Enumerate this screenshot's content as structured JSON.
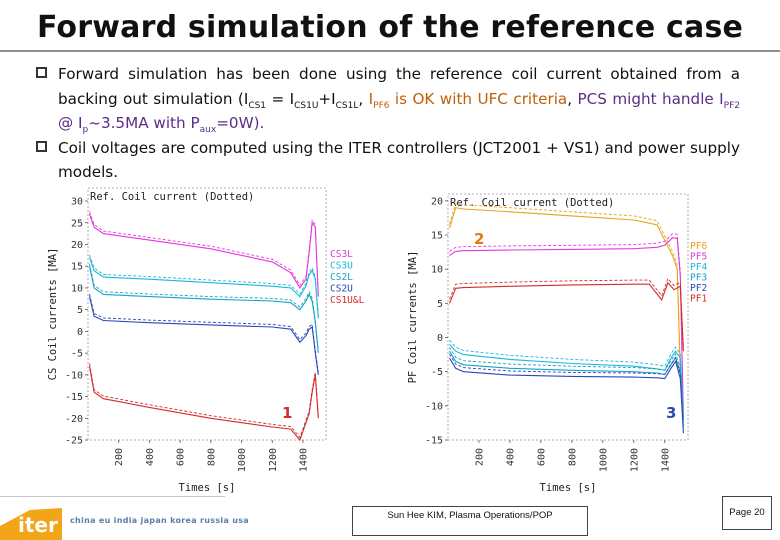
{
  "slide": {
    "title": "Forward simulation of the reference case",
    "bullet1": {
      "t1": "Forward simulation has been done using the reference coil current obtained from a backing out simulation (I",
      "s1": "CS1",
      "t2": " = I",
      "s2": "CS1U",
      "t3": "+I",
      "s3": "CS1L",
      "t4": ", ",
      "o1": "I",
      "os1": "PF6",
      "o2": " is OK with UFC criteria",
      "t5": ", ",
      "p1": "PCS might handle I",
      "ps1": "PF2",
      "p2": " @ I",
      "ps2": "p",
      "p3": "~3.5MA with P",
      "ps3": "aux",
      "p4": "=0W)."
    },
    "bullet2": "Coil voltages are computed using the ITER controllers (JCT2001 + VS1) and power supply models.",
    "footer": {
      "logo_text": "iter",
      "partners": "china eu india japan korea russia usa",
      "author": "Sun Hee KIM, Plasma Operations/POP",
      "page": "Page 20"
    }
  },
  "chart_data": [
    {
      "type": "line",
      "title": "Ref. Coil current (Dotted)",
      "xlabel": "Times [s]",
      "ylabel": "CS Coil currents [MA]",
      "x_ticks": [
        200,
        400,
        600,
        800,
        1000,
        1200,
        1400
      ],
      "y_ticks": [
        -25,
        -20,
        -15,
        -10,
        -5,
        0,
        5,
        10,
        15,
        20,
        25,
        30
      ],
      "xlim": [
        0,
        1550
      ],
      "ylim": [
        -25,
        33
      ],
      "grid": false,
      "legend_position": "right",
      "annotation": "1",
      "series": [
        {
          "name": "CS3L",
          "color": "#e23ad9",
          "x": [
            10,
            40,
            100,
            400,
            800,
            1200,
            1320,
            1380,
            1420,
            1440,
            1460,
            1480,
            1500
          ],
          "y": [
            27,
            24,
            22.5,
            21,
            19,
            16,
            13.5,
            10,
            12,
            18,
            25,
            24,
            8
          ]
        },
        {
          "name": "CS3U",
          "color": "#1ab9d6",
          "x": [
            10,
            40,
            100,
            400,
            800,
            1200,
            1320,
            1380,
            1420,
            1440,
            1460,
            1480,
            1500
          ],
          "y": [
            17,
            14,
            12.5,
            12,
            11.2,
            10.4,
            10,
            8,
            10.5,
            13,
            14,
            12,
            3
          ]
        },
        {
          "name": "CS2L",
          "color": "#17a2c6",
          "x": [
            10,
            40,
            100,
            400,
            800,
            1200,
            1320,
            1380,
            1420,
            1440,
            1460,
            1480,
            1500
          ],
          "y": [
            15,
            10,
            8.5,
            8,
            7.4,
            7,
            6.6,
            5,
            7,
            8.5,
            7,
            2,
            -5
          ]
        },
        {
          "name": "CS2U",
          "color": "#2b48b8",
          "x": [
            10,
            40,
            100,
            400,
            800,
            1200,
            1320,
            1380,
            1420,
            1440,
            1460,
            1480,
            1500
          ],
          "y": [
            8,
            3.5,
            2.5,
            2,
            1.5,
            1,
            0.5,
            -2.5,
            -1,
            0.5,
            1,
            -5,
            -10
          ]
        },
        {
          "name": "CS1U&L",
          "color": "#d42b2b",
          "x": [
            10,
            40,
            100,
            400,
            800,
            1200,
            1320,
            1380,
            1420,
            1440,
            1460,
            1480,
            1500
          ],
          "y": [
            -8,
            -14,
            -15.5,
            -17.5,
            -20,
            -22,
            -22.5,
            -25,
            -21,
            -19,
            -14,
            -10,
            -20
          ]
        }
      ]
    },
    {
      "type": "line",
      "title": "Ref. Coil current (Dotted)",
      "xlabel": "Times [s]",
      "ylabel": "PF Coil currents [MA]",
      "x_ticks": [
        200,
        400,
        600,
        800,
        1000,
        1200,
        1400
      ],
      "y_ticks": [
        -15,
        -10,
        -5,
        0,
        5,
        10,
        15,
        20
      ],
      "xlim": [
        0,
        1550
      ],
      "ylim": [
        -15,
        21
      ],
      "grid": false,
      "legend_position": "right",
      "annotations": [
        "2",
        "3"
      ],
      "series": [
        {
          "name": "PF6",
          "color": "#e8a21c",
          "x": [
            10,
            50,
            100,
            400,
            800,
            1200,
            1350,
            1450,
            1480,
            1500,
            1520
          ],
          "y": [
            16,
            19,
            18.8,
            18.4,
            17.8,
            17.2,
            16.5,
            12,
            10,
            -5,
            -10
          ]
        },
        {
          "name": "PF5",
          "color": "#e23ad9",
          "x": [
            10,
            50,
            100,
            400,
            800,
            1200,
            1350,
            1400,
            1450,
            1480,
            1500,
            1520
          ],
          "y": [
            12,
            12.6,
            12.7,
            12.8,
            12.9,
            13.0,
            13.2,
            13.5,
            14.6,
            14.5,
            9,
            -12
          ]
        },
        {
          "name": "PF4",
          "color": "#1ab9d6",
          "x": [
            10,
            50,
            100,
            400,
            800,
            1200,
            1350,
            1400,
            1440,
            1470,
            1500,
            1520
          ],
          "y": [
            -1,
            -2,
            -2.5,
            -3.2,
            -3.8,
            -4.2,
            -4.6,
            -4.8,
            -3,
            -2,
            -3,
            -12
          ]
        },
        {
          "name": "PF3",
          "color": "#17a2c6",
          "x": [
            10,
            50,
            100,
            400,
            800,
            1200,
            1350,
            1400,
            1440,
            1470,
            1500,
            1520
          ],
          "y": [
            -2,
            -3.5,
            -4,
            -4.5,
            -4.8,
            -5,
            -5.2,
            -5.4,
            -4,
            -3,
            -5,
            -13
          ]
        },
        {
          "name": "PF2",
          "color": "#2b48b8",
          "x": [
            10,
            50,
            100,
            400,
            800,
            1200,
            1350,
            1400,
            1440,
            1470,
            1500,
            1520
          ],
          "y": [
            -3,
            -4.5,
            -5,
            -5.5,
            -5.7,
            -5.8,
            -5.9,
            -6,
            -4.5,
            -3.5,
            -6,
            -14
          ]
        },
        {
          "name": "PF1",
          "color": "#d42b2b",
          "x": [
            10,
            50,
            100,
            400,
            800,
            1200,
            1300,
            1380,
            1420,
            1460,
            1500,
            1520
          ],
          "y": [
            5,
            7.2,
            7.3,
            7.5,
            7.7,
            7.8,
            7.8,
            5.5,
            8,
            7,
            7.5,
            -2
          ]
        }
      ]
    }
  ]
}
